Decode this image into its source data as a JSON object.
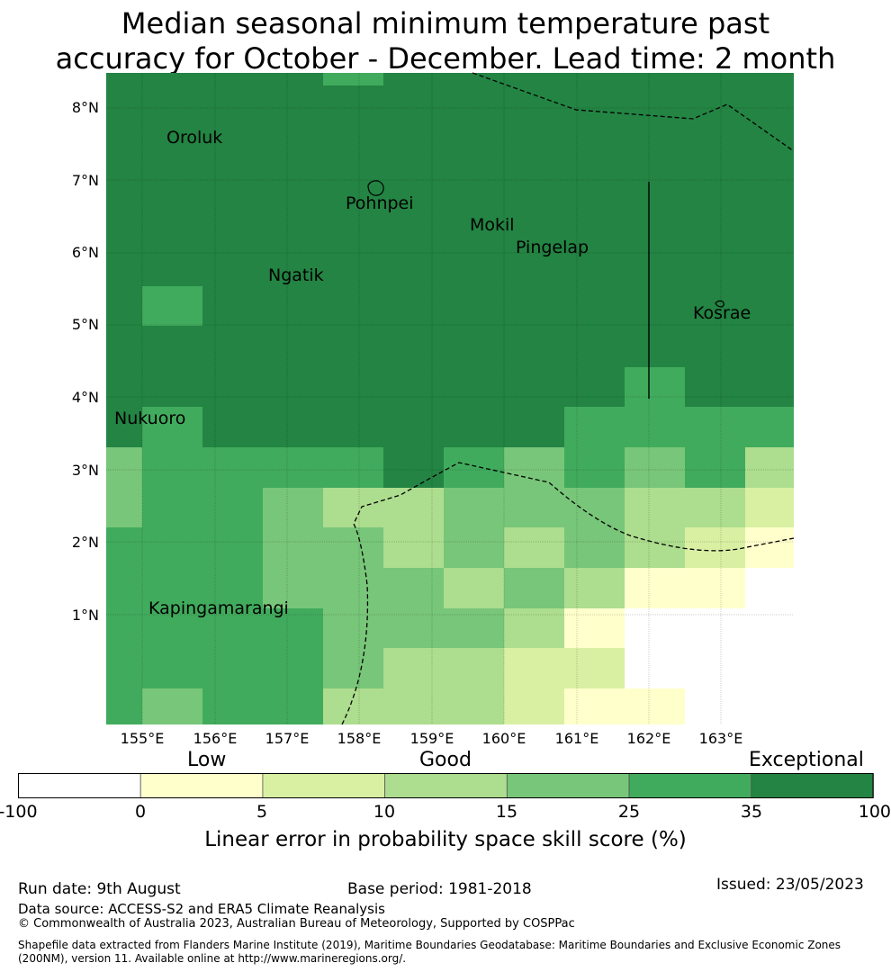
{
  "title": {
    "line1": "Median seasonal minimum temperature past",
    "line2": "accuracy for October - December. Lead time: 2 month"
  },
  "axes": {
    "lat_labels": [
      "8°N",
      "7°N",
      "6°N",
      "5°N",
      "4°N",
      "3°N",
      "2°N",
      "1°N"
    ],
    "lon_labels": [
      "155°E",
      "156°E",
      "157°E",
      "158°E",
      "159°E",
      "160°E",
      "161°E",
      "162°E",
      "163°E"
    ]
  },
  "places": [
    {
      "name": "Oroluk"
    },
    {
      "name": "Pohnpei"
    },
    {
      "name": "Mokil"
    },
    {
      "name": "Pingelap"
    },
    {
      "name": "Ngatik"
    },
    {
      "name": "Kosrae"
    },
    {
      "name": "Nukuoro"
    },
    {
      "name": "Kapingamarangi"
    }
  ],
  "legend": {
    "categories": [
      "Low",
      "Good",
      "Exceptional"
    ],
    "ticks": [
      "-100",
      "0",
      "5",
      "10",
      "15",
      "25",
      "35",
      "100"
    ],
    "colors": [
      "#ffffff",
      "#ffffcc",
      "#d9f0a3",
      "#addd8e",
      "#78c679",
      "#41ab5d",
      "#238443"
    ],
    "label": "Linear error in probability space skill score (%)"
  },
  "footer": {
    "run_date": "Run date: 9th August",
    "base_period": "Base period: 1981-2018",
    "issued": "Issued: 23/05/2023",
    "data_source": "Data source: ACCESS-S2 and ERA5 Climate Reanalysis",
    "copyright": "© Commonwealth of Australia 2023, Australian Bureau of Meteorology, Supported by COSPPac",
    "shapefile1": "Shapefile data extracted from Flanders Marine Institute (2019), Maritime Boundaries Geodatabase: Maritime Boundaries and Exclusive Economic Zones",
    "shapefile2": "(200NM), version 11. Available online at http://www.marineregions.org/."
  },
  "grid": {
    "color_index_rows_north_to_south": [
      "666666666666666666666666666666",
      "666666666666666666666666666666",
      "666666666666666666666666666666",
      "666666666666666666666666666666",
      "666666666666666666666666666666",
      "666666666666666666666666666666",
      "666666666666666666666666666666",
      "666666666666666666666666666666",
      "666666666666666666666666666666",
      "666666666666666666666666666666",
      "666666666666666666666666666666",
      "666666666666666666666666666666",
      "666666666666666666666666666666",
      "666666666666666666666666666666",
      "666666666666666666666666666666",
      "666666666666666666666666666666"
    ]
  }
}
